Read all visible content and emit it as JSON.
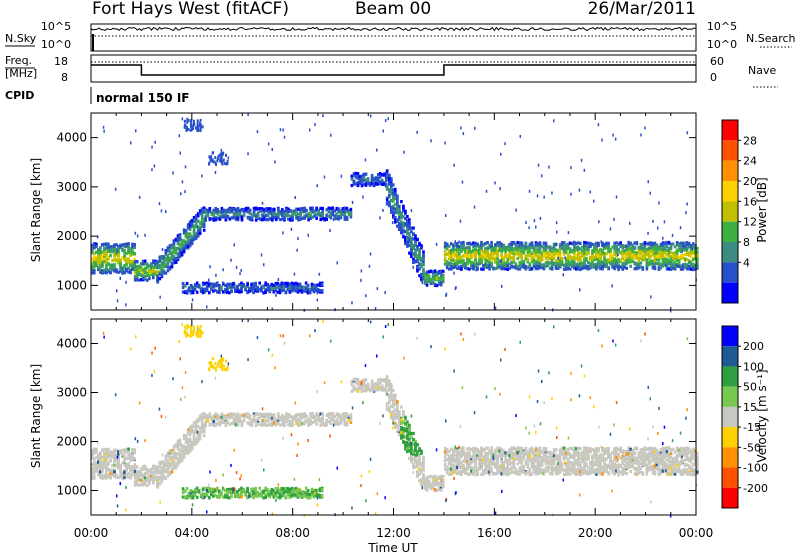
{
  "header": {
    "title": "Fort Hays West (fitACF)",
    "beam": "Beam 00",
    "date": "26/Mar/2011"
  },
  "top_panels": {
    "nsky_label": "N.Sky",
    "nsearch_label": "N.Search",
    "nsky_ticks": [
      "10^5",
      "10^0"
    ],
    "nsearch_ticks": [
      "10^5",
      "10^0"
    ],
    "freq_label_line1": "Freq.",
    "freq_label_line2": "[MHz]",
    "freq_ticks": [
      "18",
      "8"
    ],
    "nave_label": "Nave",
    "nave_ticks": [
      "60",
      "0"
    ],
    "cpid_label": "CPID",
    "cpid_text": "normal 150 IF"
  },
  "colorbars": {
    "power_label": "Power [dB]",
    "power_ticks": [
      "28",
      "24",
      "20",
      "16",
      "12",
      "8",
      "4"
    ],
    "power_colors": [
      "#ff0000",
      "#ff5000",
      "#ff9000",
      "#ffd000",
      "#c0c000",
      "#3cb040",
      "#3c8c80",
      "#2850c8",
      "#0000ff"
    ],
    "velocity_label": "Velocity [m s⁻¹]",
    "velocity_ticks": [
      "200",
      "100",
      "50",
      "15",
      "-15",
      "-50",
      "-100",
      "-200"
    ],
    "velocity_colors": [
      "#0000ff",
      "#1e5a96",
      "#2ea040",
      "#78c850",
      "#c8c8c0",
      "#ffd000",
      "#ff9000",
      "#ff5000",
      "#ff0000"
    ]
  },
  "chart_data": [
    {
      "type": "heatmap",
      "title": "",
      "xlabel": "Time UT",
      "ylabel": "Slant Range [km]",
      "x_ticks": [
        "00:00",
        "04:00",
        "08:00",
        "12:00",
        "16:00",
        "20:00",
        "00:00"
      ],
      "y_ticks": [
        1000,
        2000,
        3000,
        4000
      ],
      "xlim_hours": [
        0,
        24
      ],
      "ylim_km": [
        500,
        4500
      ],
      "colorbar": "Power [dB]",
      "scatter_bands": [
        {
          "t0": 0.0,
          "t1": 1.7,
          "center_km": 1550,
          "width_km": 600,
          "core_db": 18
        },
        {
          "t0": 1.7,
          "t1": 2.6,
          "center_km": 1300,
          "width_km": 400,
          "core_db": 16
        },
        {
          "t0": 2.6,
          "t1": 4.5,
          "center_km": 2000,
          "width_km": 500,
          "core_db": 12
        },
        {
          "t0": 4.5,
          "t1": 10.3,
          "center_km": 2450,
          "width_km": 250,
          "core_db": 10
        },
        {
          "t0": 3.6,
          "t1": 9.2,
          "center_km": 950,
          "width_km": 200,
          "core_db": 8
        },
        {
          "t0": 10.3,
          "t1": 11.7,
          "center_km": 3150,
          "width_km": 250,
          "core_db": 8
        },
        {
          "t0": 11.7,
          "t1": 13.2,
          "center_km": 1800,
          "width_km": 700,
          "core_db": 10
        },
        {
          "t0": 13.2,
          "t1": 14.0,
          "center_km": 1150,
          "width_km": 300,
          "core_db": 14
        },
        {
          "t0": 14.0,
          "t1": 24.0,
          "center_km": 1600,
          "width_km": 550,
          "core_db": 18
        }
      ]
    },
    {
      "type": "heatmap",
      "title": "",
      "xlabel": "Time UT",
      "ylabel": "Slant Range [km]",
      "x_ticks": [
        "00:00",
        "04:00",
        "08:00",
        "12:00",
        "16:00",
        "20:00",
        "00:00"
      ],
      "y_ticks": [
        1000,
        2000,
        3000,
        4000
      ],
      "xlim_hours": [
        0,
        24
      ],
      "ylim_km": [
        500,
        4500
      ],
      "colorbar": "Velocity [m s⁻¹]",
      "dominant_velocity_ms": 0,
      "features": [
        {
          "t0": 3.7,
          "t1": 4.5,
          "center_km": 4350,
          "velocity_ms": -60
        },
        {
          "t0": 12.2,
          "t1": 13.2,
          "center_km": 2100,
          "velocity_ms": 40
        },
        {
          "t0": 3.6,
          "t1": 9.2,
          "center_km": 950,
          "velocity_ms": 30
        }
      ]
    }
  ],
  "x_axis": {
    "tick_labels": [
      "00:00",
      "04:00",
      "08:00",
      "12:00",
      "16:00",
      "20:00",
      "00:00"
    ],
    "label": "Time UT"
  }
}
